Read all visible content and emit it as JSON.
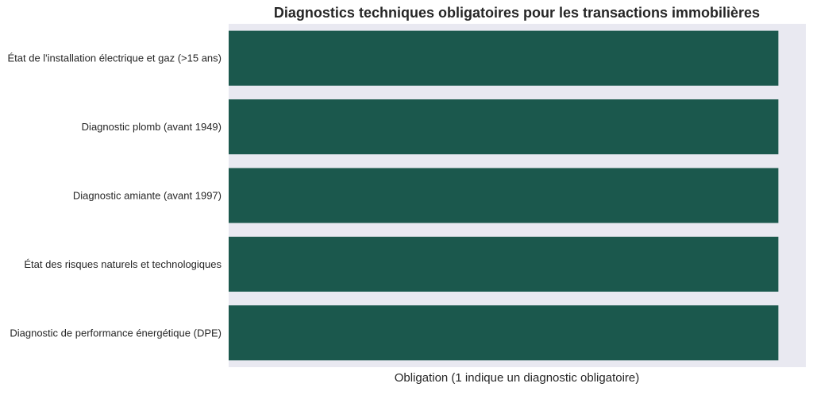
{
  "chart_data": {
    "type": "bar",
    "orientation": "horizontal",
    "title": "Diagnostics techniques obligatoires pour les transactions immobilières",
    "xlabel": "Obligation (1 indique un diagnostic obligatoire)",
    "ylabel": "",
    "categories": [
      "État de l'installation électrique et gaz (>15 ans)",
      "Diagnostic plomb (avant 1949)",
      "Diagnostic amiante (avant 1997)",
      "État des risques naturels et technologiques",
      "Diagnostic de performance énergétique (DPE)"
    ],
    "values": [
      1,
      1,
      1,
      1,
      1
    ],
    "xlim": [
      0,
      1.05
    ],
    "x_ticks_visible": false,
    "grid": false,
    "colors": {
      "bar": "#1b584d",
      "plot_background": "#e9e9f1",
      "page_background": "#ffffff",
      "text": "#262626"
    }
  }
}
